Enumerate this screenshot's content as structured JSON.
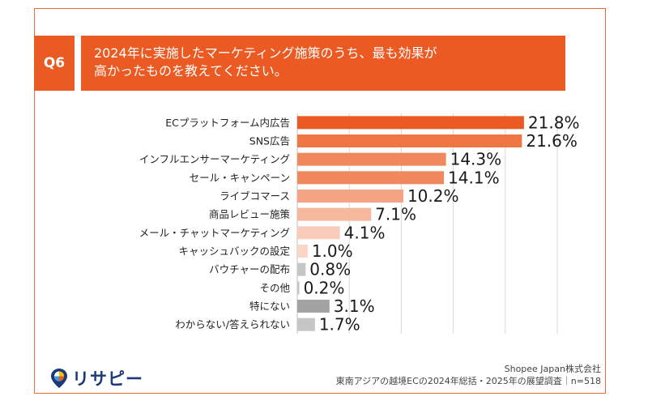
{
  "question": {
    "badge": "Q6",
    "title_line1": "2024年に実施したマーケティング施策のうち、最も効果が",
    "title_line2": "高かったものを教えてください。"
  },
  "logo": {
    "name": "リサピー"
  },
  "credit": {
    "company": "Shopee Japan株式会社",
    "survey": "東南アジアの越境ECの2024年総括・2025年の展望調査｜n=518"
  },
  "colors": {
    "accent": "#ea5a22",
    "gray_light": "#c6c6c6",
    "gray_dark": "#a3a3a3"
  },
  "chart_data": {
    "type": "bar",
    "orientation": "horizontal",
    "xlim": [
      0,
      25
    ],
    "grid": true,
    "categories": [
      "ECプラットフォーム内広告",
      "SNS広告",
      "インフルエンサーマーケティング",
      "セール・キャンペーン",
      "ライブコマース",
      "商品レビュー施策",
      "メール・チャットマーケティング",
      "キャッシュバックの設定",
      "バウチャーの配布",
      "その他",
      "特にない",
      "わからない/答えられない"
    ],
    "values": [
      21.8,
      21.6,
      14.3,
      14.1,
      10.2,
      7.1,
      4.1,
      1.0,
      0.8,
      0.2,
      3.1,
      1.7
    ],
    "labels": [
      "21.8%",
      "21.6%",
      "14.3%",
      "14.1%",
      "10.2%",
      "7.1%",
      "4.1%",
      "1.0%",
      "0.8%",
      "0.2%",
      "3.1%",
      "1.7%"
    ],
    "bar_colors": [
      "#ea5a22",
      "#ee7642",
      "#f08a5e",
      "#f08a5e",
      "#f4a482",
      "#f6b89c",
      "#f9ccba",
      "#fbd6c7",
      "#c6c6c6",
      "#c6c6c6",
      "#a3a3a3",
      "#c6c6c6"
    ]
  }
}
